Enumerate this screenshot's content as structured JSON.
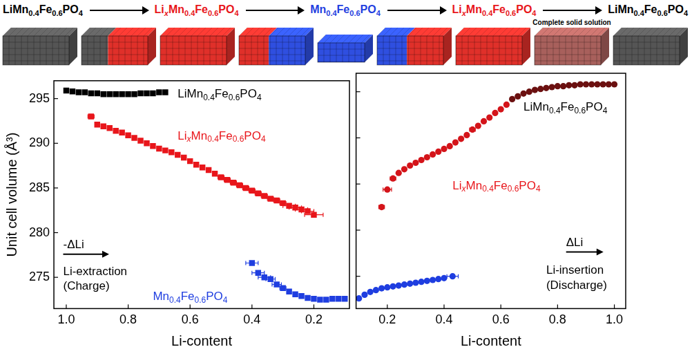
{
  "schematic": {
    "formulas": [
      {
        "text": "LiMn0.4Fe0.6PO4",
        "color": "#000000"
      },
      {
        "text": "LixMn0.4Fe0.6PO4",
        "color": "#e8161b"
      },
      {
        "text": "Mn0.4Fe0.6PO4",
        "color": "#1f3ee0"
      },
      {
        "text": "LixMn0.4Fe0.6PO4",
        "color": "#e8161b"
      },
      {
        "text": "LiMn0.4Fe0.6PO4",
        "color": "#000000"
      }
    ],
    "note": "Complete solid solution"
  },
  "chart_data": [
    {
      "type": "scatter",
      "x_label": "Li-content",
      "y_label": "Unit cell volume (Å³)",
      "xlim": [
        1.04,
        0.085
      ],
      "xticks": [
        {
          "value": 1,
          "label": "1.0"
        },
        0.8,
        0.6,
        0.4,
        0.2
      ],
      "ylim": [
        271.5,
        297
      ],
      "yticks": [
        275,
        280,
        285,
        290,
        295
      ],
      "grid": false,
      "series": [
        {
          "color": "#000000",
          "marker": "square",
          "x": [
            1.0,
            0.98,
            0.96,
            0.94,
            0.92,
            0.9,
            0.88,
            0.86,
            0.84,
            0.82,
            0.8,
            0.78,
            0.76,
            0.74,
            0.72,
            0.7,
            0.68
          ],
          "values": [
            295.9,
            295.8,
            295.7,
            295.7,
            295.6,
            295.6,
            295.5,
            295.5,
            295.5,
            295.5,
            295.5,
            295.5,
            295.6,
            295.6,
            295.6,
            295.7,
            295.7
          ]
        },
        {
          "color": "#e8161b",
          "marker": "square",
          "x": [
            0.92,
            0.9,
            0.88,
            0.86,
            0.84,
            0.82,
            0.8,
            0.78,
            0.76,
            0.74,
            0.72,
            0.7,
            0.68,
            0.66,
            0.64,
            0.62,
            0.6,
            0.58,
            0.56,
            0.54,
            0.52,
            0.5,
            0.48,
            0.46,
            0.44,
            0.42,
            0.4,
            0.38,
            0.36,
            0.34,
            0.32,
            0.3,
            0.28,
            0.26,
            0.24,
            0.22,
            0.2
          ],
          "values": [
            293.0,
            292.1,
            291.9,
            291.7,
            291.4,
            291.2,
            290.9,
            290.6,
            290.3,
            290.0,
            289.7,
            289.4,
            289.2,
            289.0,
            288.7,
            288.4,
            288.0,
            287.6,
            287.3,
            287.0,
            286.6,
            286.2,
            285.9,
            285.6,
            285.3,
            285.0,
            284.7,
            284.4,
            284.1,
            283.8,
            283.6,
            283.3,
            283.0,
            282.8,
            282.6,
            282.4,
            282.0
          ],
          "x_errors": [
            0.01,
            0.005,
            0.005,
            0.005,
            0.005,
            0.005,
            0.005,
            0.005,
            0.005,
            0.005,
            0.005,
            0.005,
            0.005,
            0.005,
            0.005,
            0.005,
            0.005,
            0.005,
            0.005,
            0.005,
            0.005,
            0.01,
            0.01,
            0.01,
            0.01,
            0.01,
            0.01,
            0.01,
            0.01,
            0.01,
            0.01,
            0.01,
            0.02,
            0.02,
            0.02,
            0.02,
            0.03
          ]
        },
        {
          "color": "#1f3ee0",
          "marker": "square",
          "x": [
            0.4,
            0.38,
            0.36,
            0.34,
            0.32,
            0.3,
            0.28,
            0.26,
            0.24,
            0.22,
            0.2,
            0.18,
            0.16,
            0.14,
            0.12,
            0.1
          ],
          "values": [
            276.6,
            275.5,
            275.0,
            274.8,
            274.2,
            273.8,
            273.4,
            273.1,
            272.9,
            272.7,
            272.6,
            272.5,
            272.5,
            272.6,
            272.6,
            272.6
          ],
          "x_errors": [
            0.02,
            0.02,
            0.02,
            0.015,
            0.015,
            0.01,
            0.005,
            0.005,
            0.005,
            0.005,
            0.005,
            0.005,
            0.005,
            0.005,
            0.005,
            0.005
          ]
        }
      ],
      "annotations": [
        {
          "text": "LiMn0.4Fe0.6PO4",
          "x": 0.64,
          "y": 295.5,
          "color": "#000000"
        },
        {
          "text": "LixMn0.4Fe0.6PO4",
          "x": 0.64,
          "y": 290.8,
          "color": "#e8161b"
        },
        {
          "text": "Mn0.4Fe0.6PO4",
          "x": 0.72,
          "y": 272.8,
          "color": "#1f3ee0"
        },
        {
          "text": "-ΔLi",
          "x": 1.01,
          "y": 278.6,
          "color": "#000000",
          "arrow": true
        },
        {
          "text": "Li-extraction",
          "x": 1.01,
          "y": 275.6,
          "color": "#000000"
        },
        {
          "text": "(Charge)",
          "x": 1.01,
          "y": 274.0,
          "color": "#000000"
        }
      ]
    },
    {
      "type": "scatter",
      "x_label": "Li-content",
      "xlim": [
        0.09,
        1.04
      ],
      "xticks": [
        0.2,
        0.4,
        0.6,
        0.8,
        {
          "value": 1,
          "label": "1.0"
        }
      ],
      "ylim": [
        271.5,
        297
      ],
      "yticks": [
        275,
        280,
        285,
        290,
        295
      ],
      "tick_labels": "x",
      "grid": false,
      "series": [
        {
          "color": "#1f3ee0",
          "marker": "circle",
          "x": [
            0.1,
            0.12,
            0.14,
            0.16,
            0.18,
            0.2,
            0.22,
            0.24,
            0.26,
            0.28,
            0.3,
            0.32,
            0.34,
            0.36,
            0.38,
            0.4,
            0.43
          ],
          "values": [
            272.6,
            273.0,
            273.3,
            273.5,
            273.7,
            273.8,
            273.9,
            274.0,
            274.1,
            274.2,
            274.3,
            274.4,
            274.5,
            274.6,
            274.7,
            274.8,
            275.0
          ],
          "x_errors": [
            0.005,
            0.005,
            0.005,
            0.005,
            0.005,
            0.005,
            0.005,
            0.005,
            0.005,
            0.005,
            0.005,
            0.005,
            0.005,
            0.005,
            0.005,
            0.005,
            0.02
          ]
        },
        {
          "color": "#d4141a",
          "marker": "circle",
          "x": [
            0.18,
            0.2,
            0.22,
            0.24,
            0.26,
            0.28,
            0.3,
            0.32,
            0.34,
            0.36,
            0.38,
            0.4,
            0.42,
            0.44,
            0.46,
            0.48,
            0.5,
            0.52,
            0.54,
            0.56,
            0.58,
            0.6,
            0.62
          ],
          "values": [
            282.5,
            284.4,
            285.6,
            286.2,
            286.6,
            287.0,
            287.3,
            287.6,
            287.9,
            288.2,
            288.5,
            288.8,
            289.1,
            289.5,
            289.9,
            290.3,
            290.9,
            291.3,
            291.8,
            292.2,
            292.7,
            293.1,
            293.6
          ],
          "x_errors": [
            0.01,
            0.015,
            0.01,
            0.005,
            0.005,
            0.005,
            0.005,
            0.005,
            0.005,
            0.005,
            0.005,
            0.005,
            0.005,
            0.005,
            0.005,
            0.005,
            0.01,
            0.005,
            0.005,
            0.005,
            0.005,
            0.005,
            0.005
          ]
        },
        {
          "color": "#6b1010",
          "marker": "circle",
          "x": [
            0.64,
            0.66,
            0.68,
            0.7,
            0.72,
            0.74,
            0.76,
            0.78,
            0.8,
            0.82,
            0.84,
            0.86,
            0.88,
            0.9,
            0.92,
            0.94,
            0.96,
            0.98,
            1.0
          ],
          "values": [
            294.2,
            294.5,
            294.8,
            295.0,
            295.2,
            295.3,
            295.4,
            295.5,
            295.6,
            295.6,
            295.7,
            295.7,
            295.8,
            295.8,
            295.8,
            295.8,
            295.8,
            295.8,
            295.8
          ]
        }
      ],
      "annotations": [
        {
          "text": "LiMn0.4Fe0.6PO4",
          "x": 0.68,
          "y": 293.3,
          "color": "#000000"
        },
        {
          "text": "LixMn0.4Fe0.6PO4",
          "x": 0.43,
          "y": 284.8,
          "color": "#e8161b"
        },
        {
          "text": "ΔLi",
          "x": 0.83,
          "y": 278.6,
          "color": "#000000",
          "arrow": true
        },
        {
          "text": "Li-insertion",
          "x": 0.76,
          "y": 275.6,
          "color": "#000000"
        },
        {
          "text": "(Discharge)",
          "x": 0.76,
          "y": 274.0,
          "color": "#000000"
        }
      ]
    }
  ]
}
